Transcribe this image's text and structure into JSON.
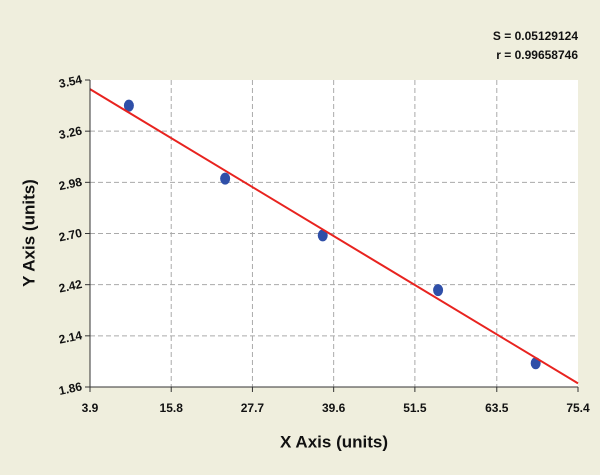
{
  "chart_data": {
    "type": "scatter",
    "annotations": [
      "S = 0.05129124",
      "r = 0.99658746"
    ],
    "x_label": "X Axis (units)",
    "y_label": "Y Axis (units)",
    "series": [
      {
        "type": "scatter",
        "color": "#2f4fa8",
        "x": [
          9.6,
          23.7,
          38.0,
          54.9,
          69.2
        ],
        "values": [
          3.4,
          3.0,
          2.69,
          2.39,
          1.99
        ]
      },
      {
        "type": "line",
        "color": "#e8231f",
        "x": [
          3.9,
          75.4
        ],
        "values": [
          3.49,
          1.88
        ]
      }
    ],
    "xlim": [
      3.9,
      75.4
    ],
    "xticks": [
      3.9,
      15.8,
      27.7,
      39.6,
      51.5,
      63.5,
      75.4
    ],
    "ylim": [
      1.86,
      3.54
    ],
    "yticks": [
      1.86,
      2.14,
      2.42,
      {
        "value": 2.7,
        "label": "2.70"
      },
      2.98,
      3.26,
      3.54
    ],
    "grid": true
  }
}
